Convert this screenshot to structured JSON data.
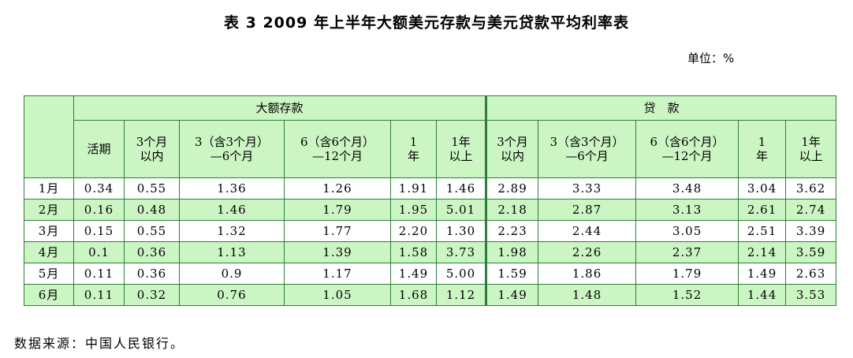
{
  "title": "表 3  2009 年上半年大额美元存款与美元贷款平均利率表",
  "unit": "单位：%",
  "groups": {
    "deposit": "大额存款",
    "loan": "贷　款"
  },
  "columns": {
    "d1": "活期",
    "d2": "3个月 以内",
    "d3": "3（含3个月） —6个月",
    "d4": "6（含6个月） —12个月",
    "d5": "1 年",
    "d6": "1年 以上",
    "l1": "3个月 以内",
    "l2": "3（含3个月） —6个月",
    "l3": "6（含6个月） —12个月",
    "l4": "1 年",
    "l5": "1年 以上"
  },
  "rows": [
    {
      "month": "1月",
      "v": [
        "0.34",
        "0.55",
        "1.36",
        "1.26",
        "1.91",
        "1.46",
        "2.89",
        "3.33",
        "3.48",
        "3.04",
        "3.62"
      ]
    },
    {
      "month": "2月",
      "v": [
        "0.16",
        "0.48",
        "1.46",
        "1.79",
        "1.95",
        "5.01",
        "2.18",
        "2.87",
        "3.13",
        "2.61",
        "2.74"
      ]
    },
    {
      "month": "3月",
      "v": [
        "0.15",
        "0.55",
        "1.32",
        "1.77",
        "2.20",
        "1.30",
        "2.23",
        "2.44",
        "3.05",
        "2.51",
        "3.39"
      ]
    },
    {
      "month": "4月",
      "v": [
        "0.1",
        "0.36",
        "1.13",
        "1.39",
        "1.58",
        "3.73",
        "1.98",
        "2.26",
        "2.37",
        "2.14",
        "3.59"
      ]
    },
    {
      "month": "5月",
      "v": [
        "0.11",
        "0.36",
        "0.9",
        "1.17",
        "1.49",
        "5.00",
        "1.59",
        "1.86",
        "1.79",
        "1.49",
        "2.63"
      ]
    },
    {
      "month": "6月",
      "v": [
        "0.11",
        "0.32",
        "0.76",
        "1.05",
        "1.68",
        "1.12",
        "1.49",
        "1.48",
        "1.52",
        "1.44",
        "3.53"
      ]
    }
  ],
  "source": "数据来源：中国人民银行。",
  "colors": {
    "header_bg": "#ccf5c4",
    "border": "#2e7d3a"
  }
}
